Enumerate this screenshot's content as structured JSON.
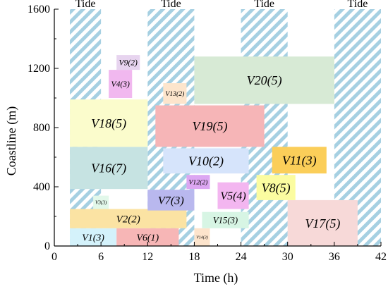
{
  "chart_data": {
    "type": "gantt",
    "xlabel": "Time (h)",
    "ylabel": "Coastline (m)",
    "xlim": [
      0,
      42
    ],
    "ylim": [
      0,
      1600
    ],
    "xticks": [
      "0",
      "6",
      "12",
      "18",
      "24",
      "30",
      "36",
      "42"
    ],
    "yticks": [
      "0",
      "400",
      "800",
      "1200",
      "1600"
    ],
    "tide_label": "Tide",
    "tide_windows": [
      [
        2,
        6
      ],
      [
        12,
        18
      ],
      [
        24,
        30
      ],
      [
        36,
        42
      ]
    ],
    "vessels": [
      {
        "label": "V1(3)",
        "x": [
          2,
          8
        ],
        "y": [
          0,
          120
        ],
        "color": "#d4f2fb"
      },
      {
        "label": "V6(1)",
        "x": [
          8,
          16
        ],
        "y": [
          0,
          120
        ],
        "color": "#f7b6b6"
      },
      {
        "label": "V14(3)",
        "x": [
          18,
          20
        ],
        "y": [
          0,
          120
        ],
        "color": "#fde4cc"
      },
      {
        "label": "V2(2)",
        "x": [
          2,
          17
        ],
        "y": [
          120,
          250
        ],
        "color": "#fbe3a3"
      },
      {
        "label": "V15(3)",
        "x": [
          19,
          25
        ],
        "y": [
          120,
          230
        ],
        "color": "#d7f5e4"
      },
      {
        "label": "V3(3)",
        "x": [
          5,
          7
        ],
        "y": [
          250,
          340
        ],
        "color": "#e2f8ea"
      },
      {
        "label": "V7(3)",
        "x": [
          12,
          18
        ],
        "y": [
          240,
          380
        ],
        "color": "#b9b8ee"
      },
      {
        "label": "V5(4)",
        "x": [
          21,
          25
        ],
        "y": [
          250,
          430
        ],
        "color": "#f3b6f0"
      },
      {
        "label": "V17(5)",
        "x": [
          30,
          39
        ],
        "y": [
          0,
          310
        ],
        "color": "#f7d9d8"
      },
      {
        "label": "V8(5)",
        "x": [
          26,
          31
        ],
        "y": [
          310,
          480
        ],
        "color": "#fbfca0"
      },
      {
        "label": "V12(2)",
        "x": [
          17,
          20
        ],
        "y": [
          385,
          480
        ],
        "color": "#dca6f2"
      },
      {
        "label": "V11(3)",
        "x": [
          28,
          35
        ],
        "y": [
          490,
          670
        ],
        "color": "#fbce59"
      },
      {
        "label": "V16(7)",
        "x": [
          2,
          12
        ],
        "y": [
          385,
          670
        ],
        "color": "#c6e3e2"
      },
      {
        "label": "V10(2)",
        "x": [
          14,
          25
        ],
        "y": [
          490,
          660
        ],
        "color": "#d6e4fb"
      },
      {
        "label": "V18(5)",
        "x": [
          2,
          12
        ],
        "y": [
          670,
          990
        ],
        "color": "#fbfccc"
      },
      {
        "label": "V19(5)",
        "x": [
          13,
          27
        ],
        "y": [
          670,
          950
        ],
        "color": "#f6b5b7"
      },
      {
        "label": "V13(2)",
        "x": [
          14,
          17
        ],
        "y": [
          960,
          1100
        ],
        "color": "#fde5cc"
      },
      {
        "label": "V20(5)",
        "x": [
          18,
          36
        ],
        "y": [
          960,
          1280
        ],
        "color": "#d7ead5"
      },
      {
        "label": "V4(3)",
        "x": [
          7,
          10
        ],
        "y": [
          1000,
          1190
        ],
        "color": "#f1b8ef"
      },
      {
        "label": "V9(2)",
        "x": [
          8,
          11
        ],
        "y": [
          1190,
          1290
        ],
        "color": "#e7d4ef"
      }
    ]
  }
}
